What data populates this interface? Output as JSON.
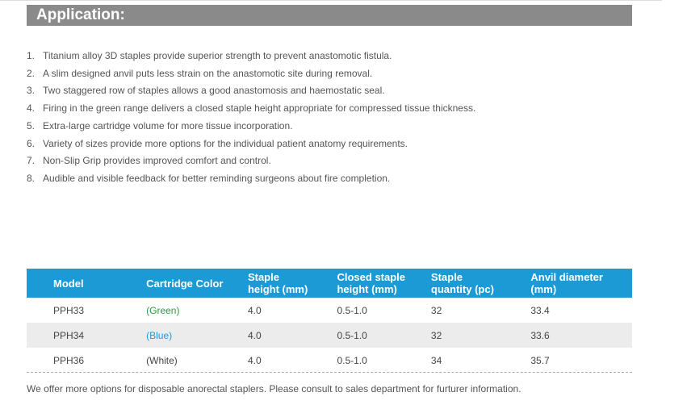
{
  "header": {
    "title": "Application:"
  },
  "application_items": [
    {
      "num": "1.",
      "text": "Titanium alloy 3D staples provide superior strength to prevent anastomotic fistula."
    },
    {
      "num": "2.",
      "text": "A slim designed anvil puts less strain on the anastomotic site during removal."
    },
    {
      "num": "3.",
      "text": "Two staggered row of staples allows a good anastomosis and haemostatic seal."
    },
    {
      "num": "4.",
      "text": "Firing in the green range delivers a closed staple height appropriate for compressed tissue thickness."
    },
    {
      "num": "5.",
      "text": "Extra-large cartridge volume for more tissue incorporation."
    },
    {
      "num": "6.",
      "text": "Variety of sizes provide more options for the individual patient anatomy requirements."
    },
    {
      "num": "7.",
      "text": "Non-Slip Grip provides improved comfort and control."
    },
    {
      "num": "8.",
      "text": "Audible and visible feedback for better reminding surgeons about fire completion."
    }
  ],
  "table": {
    "headers": {
      "model": "Model",
      "color": "Cartridge Color",
      "staple_height_1": "Staple",
      "staple_height_2": "height (mm)",
      "closed_1": "Closed staple",
      "closed_2": "height (mm)",
      "quantity_1": "Staple",
      "quantity_2": "quantity (pc)",
      "anvil_1": "Anvil diameter",
      "anvil_2": "(mm)"
    },
    "rows": [
      {
        "model": "PPH33",
        "color": "(Green)",
        "staple_height": "4.0",
        "closed_height": "0.5-1.0",
        "quantity": "32",
        "anvil": "33.4"
      },
      {
        "model": "PPH34",
        "color": "(Blue)",
        "staple_height": "4.0",
        "closed_height": "0.5-1.0",
        "quantity": "32",
        "anvil": "33.6"
      },
      {
        "model": "PPH36",
        "color": "(White)",
        "staple_height": "4.0",
        "closed_height": "0.5-1.0",
        "quantity": "34",
        "anvil": "35.7"
      }
    ]
  },
  "colors": {
    "header_bar": "#8a8a8a",
    "table_header": "#1b9ad6",
    "green_label": "#2e9b3f",
    "blue_label": "#1b9ad6",
    "white_label": "#444444"
  },
  "footer": {
    "note": "We offer more options for disposable anorectal staplers. Please consult to sales department for furturer information."
  }
}
